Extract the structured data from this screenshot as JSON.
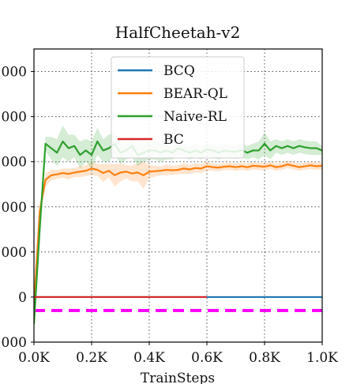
{
  "chart_data": {
    "type": "line",
    "title": "HalfCheetah-v2",
    "xlabel": "TrainSteps",
    "ylabel": "",
    "xlim": [
      0,
      1000
    ],
    "ylim": [
      -1000,
      5500
    ],
    "x_ticks": [
      0,
      200,
      400,
      600,
      800,
      1000
    ],
    "x_tick_labels": [
      "0.0K",
      "0.2K",
      "0.4K",
      "0.6K",
      "0.8K",
      "1.0K"
    ],
    "y_ticks": [
      -1000,
      0,
      1000,
      2000,
      3000,
      4000,
      5000
    ],
    "y_tick_labels": [
      "000",
      "0",
      "000",
      "000",
      "000",
      "000",
      "000"
    ],
    "grid": true,
    "legend_position": "top-center",
    "reference_line": {
      "y": -300,
      "color": "#ff00ff",
      "style": "dashed"
    },
    "series": [
      {
        "name": "BCQ",
        "color": "#1f77b4",
        "x": [
          0,
          600,
          1000
        ],
        "y": [
          0,
          0,
          0
        ]
      },
      {
        "name": "BEAR-QL",
        "color": "#ff7f0e",
        "x": [
          0,
          20,
          40,
          60,
          80,
          100,
          120,
          140,
          160,
          180,
          200,
          220,
          240,
          260,
          280,
          300,
          320,
          340,
          360,
          380,
          400,
          420,
          440,
          460,
          480,
          500,
          520,
          540,
          560,
          580,
          600,
          620,
          640,
          660,
          680,
          700,
          720,
          740,
          760,
          780,
          800,
          820,
          840,
          860,
          880,
          900,
          920,
          940,
          960,
          980,
          1000
        ],
        "y": [
          -200,
          1900,
          2600,
          2700,
          2720,
          2750,
          2730,
          2760,
          2780,
          2800,
          2850,
          2820,
          2750,
          2800,
          2700,
          2760,
          2780,
          2740,
          2760,
          2700,
          2780,
          2790,
          2800,
          2820,
          2810,
          2820,
          2850,
          2830,
          2860,
          2850,
          2900,
          2880,
          2870,
          2890,
          2900,
          2880,
          2900,
          2880,
          2910,
          2900,
          2890,
          2920,
          2880,
          2900,
          2940,
          2910,
          2880,
          2900,
          2920,
          2900,
          2910
        ],
        "band": [
          50,
          150,
          150,
          120,
          100,
          100,
          120,
          100,
          120,
          120,
          150,
          130,
          200,
          150,
          250,
          200,
          150,
          180,
          200,
          300,
          150,
          120,
          100,
          120,
          100,
          100,
          120,
          100,
          100,
          100,
          100,
          80,
          80,
          80,
          80,
          80,
          80,
          80,
          80,
          80,
          80,
          80,
          80,
          80,
          80,
          80,
          80,
          80,
          80,
          80,
          80
        ]
      },
      {
        "name": "Naive-RL",
        "color": "#2ca02c",
        "x": [
          0,
          20,
          40,
          60,
          80,
          100,
          120,
          140,
          160,
          180,
          200,
          220,
          240,
          260,
          280,
          300,
          320,
          340,
          360,
          380,
          400,
          420,
          440,
          460,
          480,
          500,
          520,
          540,
          560,
          580,
          600,
          620,
          640,
          660,
          680,
          700,
          720,
          740,
          760,
          780,
          800,
          820,
          840,
          860,
          880,
          900,
          920,
          940,
          960,
          980,
          1000
        ],
        "y": [
          -600,
          1500,
          3400,
          3300,
          3200,
          3450,
          3300,
          3350,
          3150,
          3250,
          3150,
          3450,
          3250,
          3300,
          3400,
          3200,
          3250,
          3350,
          3150,
          3200,
          3250,
          3250,
          3200,
          3250,
          3200,
          3300,
          3250,
          3200,
          3250,
          3200,
          3280,
          3250,
          3200,
          3250,
          3230,
          3220,
          3260,
          3200,
          3250,
          3250,
          3400,
          3250,
          3350,
          3300,
          3350,
          3300,
          3350,
          3320,
          3300,
          3300,
          3250
        ],
        "band": [
          80,
          200,
          150,
          250,
          300,
          350,
          300,
          250,
          300,
          250,
          300,
          300,
          250,
          300,
          250,
          250,
          200,
          250,
          250,
          200,
          200,
          200,
          200,
          200,
          150,
          150,
          150,
          150,
          150,
          150,
          150,
          150,
          150,
          150,
          150,
          150,
          150,
          150,
          150,
          200,
          250,
          200,
          150,
          150,
          150,
          150,
          150,
          150,
          150,
          150,
          100
        ]
      },
      {
        "name": "BC",
        "color": "#d62728",
        "x": [
          0,
          100,
          200,
          300,
          400,
          500,
          600
        ],
        "y": [
          0,
          0,
          0,
          0,
          0,
          0,
          0
        ]
      }
    ]
  }
}
